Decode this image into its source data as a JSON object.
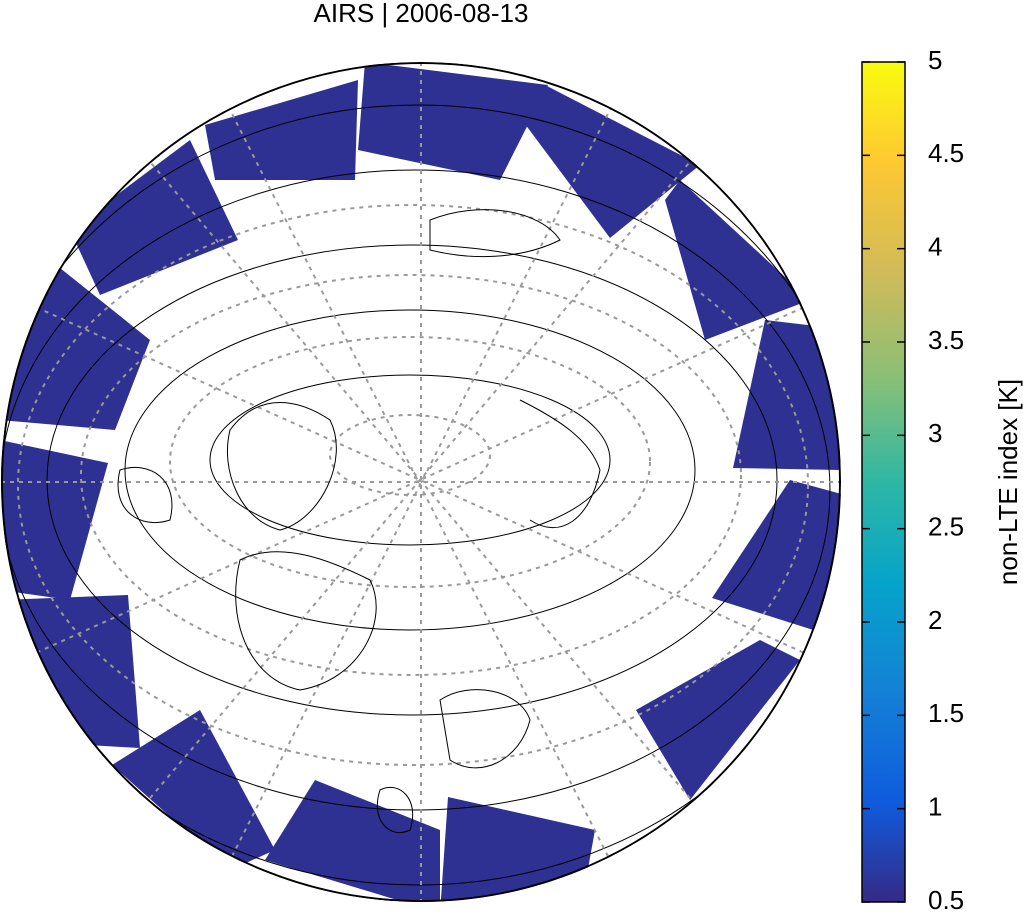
{
  "title": "AIRS | 2006-08-13",
  "colorbar": {
    "label": "non-LTE index [K]",
    "lim": [
      0.5,
      5
    ],
    "ticks": [
      0.5,
      1,
      1.5,
      2,
      2.5,
      3,
      3.5,
      4,
      4.5,
      5
    ]
  }
}
